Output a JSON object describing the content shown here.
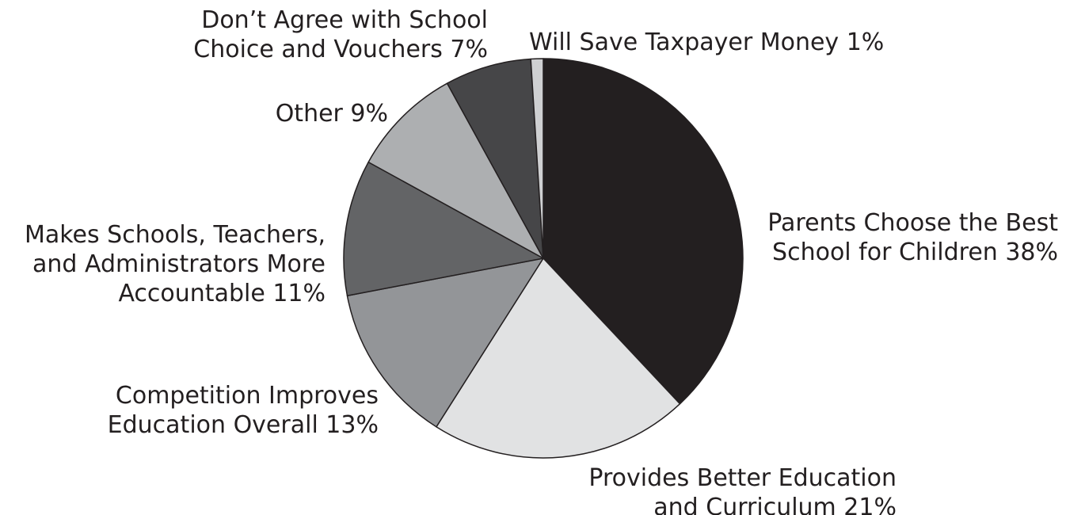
{
  "chart_data": {
    "type": "pie",
    "start_angle_deg": 0,
    "direction": "clockwise",
    "slices": [
      {
        "label": "Parents Choose the Best School for Children",
        "value": 38,
        "value_label": "38%",
        "color": "#231f20",
        "label_lines": [
          "Parents Choose the Best",
          "School for Children 38%"
        ]
      },
      {
        "label": "Provides Better Education and Curriculum",
        "value": 21,
        "value_label": "21%",
        "color": "#e1e2e3",
        "label_lines": [
          "Provides Better Education",
          "and Curriculum 21%"
        ]
      },
      {
        "label": "Competition Improves Education Overall",
        "value": 13,
        "value_label": "13%",
        "color": "#939598",
        "label_lines": [
          "Competition Improves",
          "Education Overall 13%"
        ]
      },
      {
        "label": "Makes Schools, Teachers, and Administrators More Accountable",
        "value": 11,
        "value_label": "11%",
        "color": "#636466",
        "label_lines": [
          "Makes Schools, Teachers,",
          "and Administrators More",
          "Accountable 11%"
        ]
      },
      {
        "label": "Other",
        "value": 9,
        "value_label": "9%",
        "color": "#adafb1",
        "label_lines": [
          "Other 9%"
        ]
      },
      {
        "label": "Don’t Agree with School Choice and Vouchers",
        "value": 7,
        "value_label": "7%",
        "color": "#464648",
        "label_lines": [
          "Don’t Agree with School",
          "Choice and Vouchers 7%"
        ]
      },
      {
        "label": "Will Save Taxpayer Money",
        "value": 1,
        "value_label": "1%",
        "color": "#cfd0d2",
        "label_lines": [
          "Will Save Taxpayer Money 1%"
        ]
      }
    ]
  }
}
